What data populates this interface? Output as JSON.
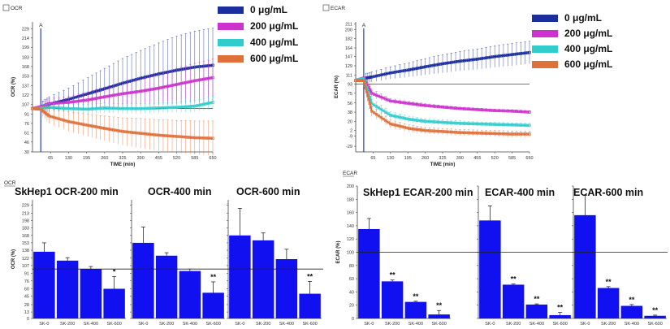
{
  "chart_data": [
    {
      "id": "ocr_time",
      "type": "line",
      "corner_label": "OCR",
      "ylabel": "OCR (%)",
      "xlabel": "TIME (min)",
      "ylim": [
        30,
        240
      ],
      "yticks": [
        "30",
        "46",
        "61",
        "76",
        "91",
        "107",
        "122",
        "137",
        "153",
        "168",
        "183",
        "199",
        "214",
        "229"
      ],
      "ytick_values": [
        30,
        46,
        61,
        76,
        91,
        107,
        122,
        137,
        153,
        168,
        183,
        199,
        214,
        229
      ],
      "xticks": [
        "65",
        "130",
        "195",
        "260",
        "325",
        "390",
        "455",
        "520",
        "585",
        "650"
      ],
      "xtick_values": [
        65,
        130,
        195,
        260,
        325,
        390,
        455,
        520,
        585,
        650
      ],
      "xlim": [
        0,
        650
      ],
      "baseline": 100,
      "injection_time": 30,
      "injection_label": "A",
      "series": [
        {
          "name": "0 μg/mL",
          "color": "#1a2e9e",
          "x": [
            0,
            30,
            60,
            130,
            200,
            260,
            325,
            390,
            455,
            520,
            585,
            650
          ],
          "y": [
            100,
            102,
            107,
            115,
            124,
            132,
            141,
            149,
            156,
            162,
            167,
            170
          ],
          "err": [
            6,
            8,
            12,
            18,
            26,
            33,
            40,
            45,
            50,
            55,
            58,
            60
          ]
        },
        {
          "name": "200 μg/mL",
          "color": "#cc33cc",
          "x": [
            0,
            30,
            60,
            130,
            200,
            260,
            325,
            390,
            455,
            520,
            585,
            650
          ],
          "y": [
            100,
            103,
            108,
            110,
            114,
            119,
            124,
            128,
            133,
            139,
            145,
            150
          ],
          "err": [
            5,
            6,
            8,
            10,
            13,
            16,
            18,
            20,
            23,
            26,
            28,
            30
          ]
        },
        {
          "name": "400 μg/mL",
          "color": "#33cccc",
          "x": [
            0,
            30,
            60,
            130,
            200,
            260,
            325,
            390,
            455,
            520,
            585,
            650
          ],
          "y": [
            100,
            101,
            102,
            100,
            99,
            101,
            100,
            100,
            101,
            102,
            104,
            110
          ],
          "err": [
            4,
            5,
            6,
            7,
            8,
            8,
            8,
            8,
            8,
            8,
            9,
            10
          ]
        },
        {
          "name": "600 μg/mL",
          "color": "#e0703a",
          "x": [
            0,
            30,
            60,
            130,
            200,
            260,
            325,
            390,
            455,
            520,
            585,
            650
          ],
          "y": [
            100,
            99,
            88,
            79,
            73,
            68,
            63,
            60,
            57,
            55,
            53,
            52
          ],
          "err": [
            5,
            8,
            12,
            16,
            18,
            20,
            22,
            24,
            25,
            26,
            27,
            28
          ]
        }
      ]
    },
    {
      "id": "ecar_time",
      "type": "line",
      "corner_label": "ECAR",
      "ylabel": "ECAR (%)",
      "xlabel": "TIME (min)",
      "ylim": [
        -40,
        215
      ],
      "yticks": [
        "-29",
        "-9",
        "2",
        "20",
        "38",
        "56",
        "75",
        "93",
        "111",
        "129",
        "147",
        "164",
        "182",
        "200",
        "211"
      ],
      "ytick_values": [
        -29,
        -9,
        2,
        20,
        38,
        56,
        75,
        93,
        111,
        129,
        147,
        164,
        182,
        200,
        211
      ],
      "xticks": [
        "65",
        "130",
        "195",
        "260",
        "325",
        "390",
        "455",
        "520",
        "585",
        "650"
      ],
      "xtick_values": [
        65,
        130,
        195,
        260,
        325,
        390,
        455,
        520,
        585,
        650
      ],
      "xlim": [
        0,
        650
      ],
      "baseline": 93,
      "injection_time": 30,
      "injection_label": "A",
      "series": [
        {
          "name": "0 μg/mL",
          "color": "#1a2e9e",
          "x": [
            0,
            30,
            60,
            130,
            200,
            260,
            325,
            390,
            455,
            520,
            585,
            650
          ],
          "y": [
            100,
            104,
            107,
            115,
            121,
            127,
            133,
            138,
            142,
            147,
            151,
            155
          ],
          "err": [
            6,
            8,
            10,
            12,
            14,
            16,
            18,
            19,
            20,
            21,
            22,
            22
          ]
        },
        {
          "name": "200 μg/mL",
          "color": "#cc33cc",
          "x": [
            0,
            30,
            60,
            130,
            200,
            260,
            325,
            390,
            455,
            520,
            585,
            650
          ],
          "y": [
            100,
            105,
            75,
            60,
            55,
            51,
            48,
            45,
            43,
            41,
            40,
            38
          ],
          "err": [
            4,
            10,
            8,
            5,
            4,
            4,
            3,
            3,
            3,
            3,
            3,
            3
          ]
        },
        {
          "name": "400 μg/mL",
          "color": "#33cccc",
          "x": [
            0,
            30,
            60,
            130,
            200,
            260,
            325,
            390,
            455,
            520,
            585,
            650
          ],
          "y": [
            100,
            104,
            55,
            32,
            24,
            20,
            18,
            16,
            15,
            14,
            13,
            12
          ],
          "err": [
            4,
            10,
            9,
            7,
            6,
            5,
            5,
            5,
            4,
            4,
            4,
            4
          ]
        },
        {
          "name": "600 μg/mL",
          "color": "#e0703a",
          "x": [
            0,
            30,
            60,
            130,
            200,
            260,
            325,
            390,
            455,
            520,
            585,
            650
          ],
          "y": [
            100,
            100,
            40,
            15,
            6,
            2,
            0,
            -2,
            -3,
            -4,
            -5,
            -5
          ],
          "err": [
            4,
            10,
            10,
            8,
            7,
            6,
            6,
            6,
            6,
            6,
            6,
            6
          ]
        }
      ]
    },
    {
      "id": "ocr_bar",
      "type": "bar",
      "corner_label": "OCR",
      "ylabel": "OCR (%)",
      "ylim": [
        0,
        240
      ],
      "yticks": [
        "0",
        "13",
        "28",
        "45",
        "60",
        "76",
        "91",
        "107",
        "122",
        "138",
        "153",
        "168",
        "183",
        "198",
        "213",
        "229"
      ],
      "ytick_values": [
        0,
        13,
        28,
        45,
        60,
        76,
        91,
        107,
        122,
        138,
        153,
        168,
        183,
        198,
        213,
        229
      ],
      "baseline": 100,
      "groups": [
        {
          "title": "SkHep1 OCR-200 min",
          "categories": [
            "SK-0",
            "SK-200",
            "SK-400",
            "SK-600"
          ],
          "values": [
            135,
            117,
            100,
            60
          ],
          "errors": [
            18,
            6,
            5,
            25
          ],
          "stars": [
            "",
            "",
            "",
            "*"
          ]
        },
        {
          "title": "OCR-400 min",
          "categories": [
            "SK-0",
            "SK-200",
            "SK-400",
            "SK-600"
          ],
          "values": [
            153,
            127,
            96,
            52
          ],
          "errors": [
            32,
            6,
            4,
            22
          ],
          "stars": [
            "",
            "",
            "",
            "**"
          ]
        },
        {
          "title": "OCR-600 min",
          "categories": [
            "SK-0",
            "SK-200",
            "SK-400",
            "SK-600"
          ],
          "values": [
            168,
            158,
            120,
            50
          ],
          "errors": [
            55,
            15,
            20,
            25
          ],
          "stars": [
            "",
            "",
            "",
            "**"
          ]
        }
      ]
    },
    {
      "id": "ecar_bar",
      "type": "bar",
      "corner_label": "ECAR",
      "ylabel": "ECAR (%)",
      "ylim": [
        0,
        200
      ],
      "yticks": [
        "0",
        "20",
        "40",
        "60",
        "80",
        "100",
        "120",
        "140",
        "160",
        "180",
        "200"
      ],
      "ytick_values": [
        0,
        20,
        40,
        60,
        80,
        100,
        120,
        140,
        160,
        180,
        200
      ],
      "baseline": 100,
      "groups": [
        {
          "title": "SkHep1 ECAR-200 min",
          "categories": [
            "SK-0",
            "SK-200",
            "SK-400",
            "SK-600"
          ],
          "values": [
            135,
            56,
            25,
            6
          ],
          "errors": [
            16,
            2,
            1,
            6
          ],
          "stars": [
            "",
            "**",
            "**",
            "**"
          ]
        },
        {
          "title": "ECAR-400 min",
          "categories": [
            "SK-0",
            "SK-200",
            "SK-400",
            "SK-600"
          ],
          "values": [
            148,
            51,
            21,
            5
          ],
          "errors": [
            22,
            1,
            1,
            4
          ],
          "stars": [
            "",
            "**",
            "**",
            "**"
          ]
        },
        {
          "title": "ECAR-600 min",
          "categories": [
            "SK-0",
            "SK-200",
            "SK-400",
            "SK-600"
          ],
          "values": [
            156,
            46,
            19,
            4
          ],
          "errors": [
            30,
            2,
            2,
            1
          ],
          "stars": [
            "",
            "**",
            "**",
            "**"
          ]
        }
      ]
    }
  ]
}
